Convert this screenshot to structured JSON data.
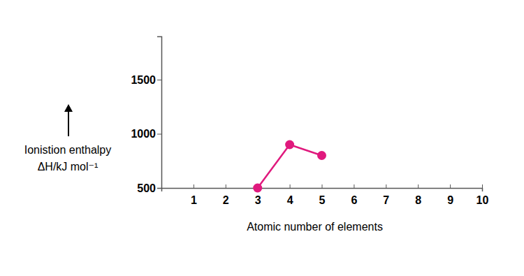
{
  "chart_data": {
    "type": "line",
    "xlabel": "Atomic number of elements",
    "ylabel": [
      "Ionistion enthalpy",
      "ΔH/kJ mol⁻¹"
    ],
    "x": [
      3,
      4,
      5
    ],
    "values": [
      500,
      900,
      800
    ],
    "color": "#e0197d",
    "marker": "circle",
    "xlim": [
      0,
      10
    ],
    "xticks": [
      1,
      2,
      3,
      4,
      5,
      6,
      7,
      8,
      9,
      10
    ],
    "ylim": [
      500,
      1900
    ],
    "yticks": [
      500,
      1000,
      1500
    ],
    "grid": false
  }
}
